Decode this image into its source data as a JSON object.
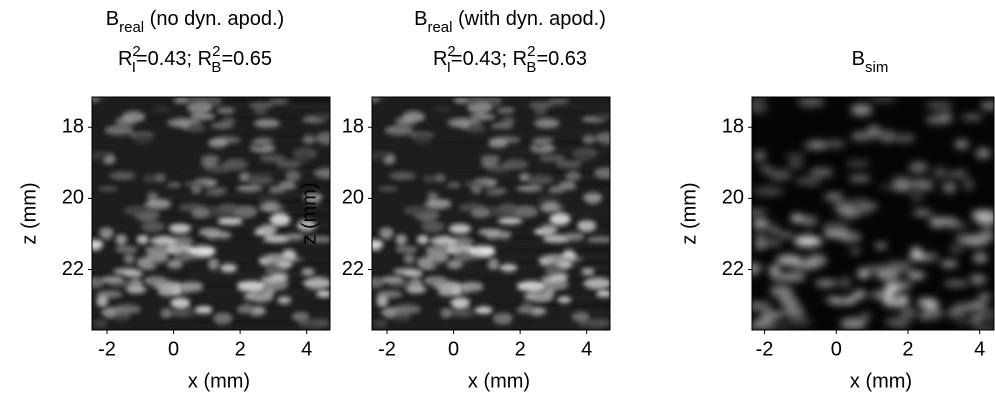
{
  "chart_data": [
    {
      "type": "image",
      "title": {
        "base": "B",
        "sub": "real",
        "rest": " (no dyn. apod.)"
      },
      "annotation": [
        "R",
        "2",
        "I",
        "=0.43; ",
        "R",
        "2",
        "B",
        "=0.65"
      ],
      "xlabel": "x (mm)",
      "ylabel": "z (mm)",
      "xlim": [
        -2.45,
        4.7
      ],
      "ylim": [
        17.15,
        23.7
      ],
      "y_reversed": true,
      "xticks": [
        -2,
        0,
        2,
        4
      ],
      "yticks": [
        18,
        20,
        22
      ]
    },
    {
      "type": "image",
      "title": {
        "base": "B",
        "sub": "real",
        "rest": " (with dyn. apod.)"
      },
      "annotation": [
        "R",
        "2",
        "I",
        "=0.43; ",
        "R",
        "2",
        "B",
        "=0.63"
      ],
      "xlabel": "x (mm)",
      "ylabel": "z (mm)",
      "xlim": [
        -2.45,
        4.7
      ],
      "ylim": [
        17.15,
        23.7
      ],
      "y_reversed": true,
      "xticks": [
        -2,
        0,
        2,
        4
      ],
      "yticks": [
        18,
        20,
        22
      ]
    },
    {
      "type": "image",
      "title": {
        "base": "B",
        "sub": "sim"
      },
      "xlabel": "x (mm)",
      "ylabel": "z (mm)",
      "xlim": [
        -2.35,
        4.4
      ],
      "ylim": [
        17.15,
        23.7
      ],
      "y_reversed": true,
      "xticks": [
        -2,
        0,
        2,
        4
      ],
      "yticks": [
        18,
        20,
        22
      ]
    }
  ]
}
